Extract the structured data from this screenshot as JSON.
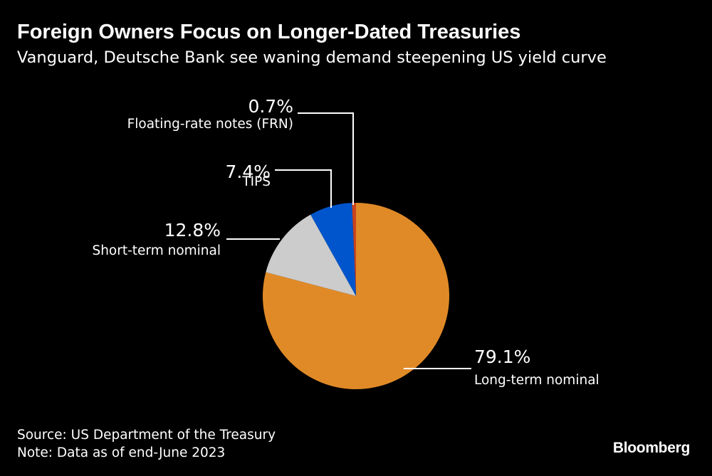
{
  "header": {
    "title": "Foreign Owners Focus on Longer-Dated Treasuries",
    "subtitle": "Vanguard, Deutsche Bank see waning demand steepening US yield curve"
  },
  "chart_data": {
    "type": "pie",
    "title": "Foreign Owners Focus on Longer-Dated Treasuries",
    "subtitle": "Vanguard, Deutsche Bank see waning demand steepening US yield curve",
    "slices": [
      {
        "label": "Long-term nominal",
        "value": 79.1,
        "value_label": "79.1%",
        "color": "#E08A27"
      },
      {
        "label": "Short-term nominal",
        "value": 12.8,
        "value_label": "12.8%",
        "color": "#CCCCCC"
      },
      {
        "label": "TIPS",
        "value": 7.4,
        "value_label": "7.4%",
        "color": "#0055CC"
      },
      {
        "label": "Floating-rate notes (FRN)",
        "value": 0.7,
        "value_label": "0.7%",
        "color": "#C8431F"
      }
    ],
    "legend": "none",
    "start": "12 o'clock",
    "direction": "clockwise"
  },
  "footer": {
    "source": "Source: US Department of the Treasury",
    "note": "Note: Data as of end-June 2023",
    "brand": "Bloomberg"
  },
  "colors": {
    "background": "#000000",
    "text": "#FFFFFF",
    "leader_line": "#FFFFFF"
  }
}
